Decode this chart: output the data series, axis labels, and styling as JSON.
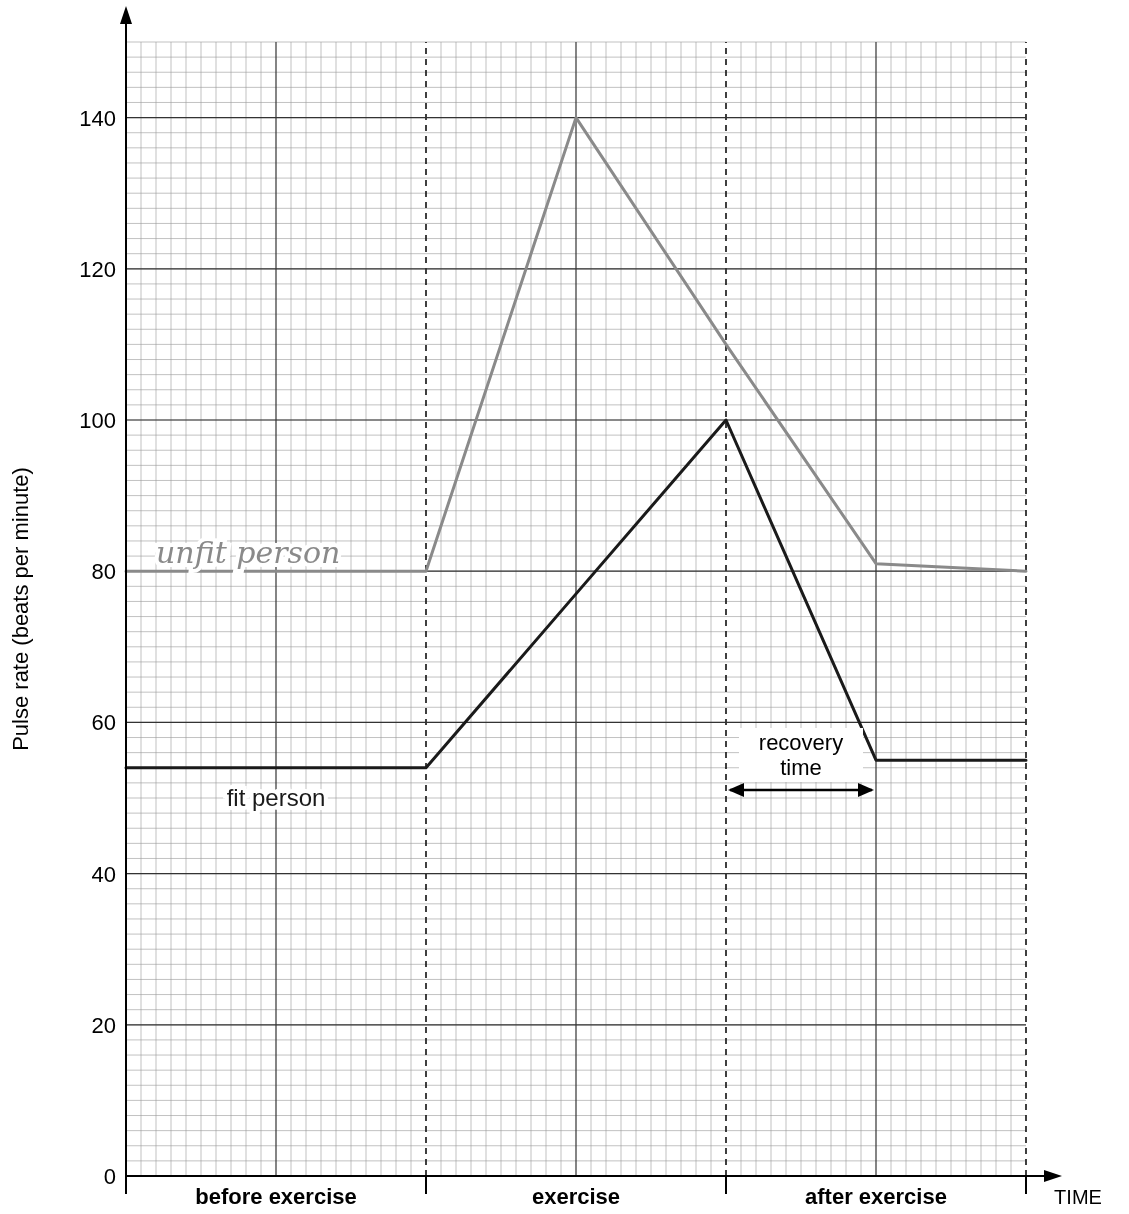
{
  "chart_data": {
    "type": "line",
    "xlabel": "TIME",
    "ylabel": "Pulse rate (beats per minute)",
    "categories": [
      null,
      "before exercise",
      null,
      "exercise",
      null,
      "after exercise",
      null
    ],
    "ylim": [
      0,
      150
    ],
    "yticks": [
      0,
      20,
      40,
      60,
      80,
      100,
      120,
      140
    ],
    "grid": true,
    "marker": "none",
    "line_style": "solid",
    "series": [
      {
        "name": "fit person",
        "color": "#1a1a1a",
        "values": [
          54,
          54,
          54,
          77,
          100,
          55,
          55
        ]
      },
      {
        "name": "unfit person",
        "color": "#8a8a8a",
        "values": [
          80,
          80,
          80,
          140,
          110,
          81,
          80
        ]
      }
    ],
    "annotations": [
      "recovery time"
    ]
  }
}
